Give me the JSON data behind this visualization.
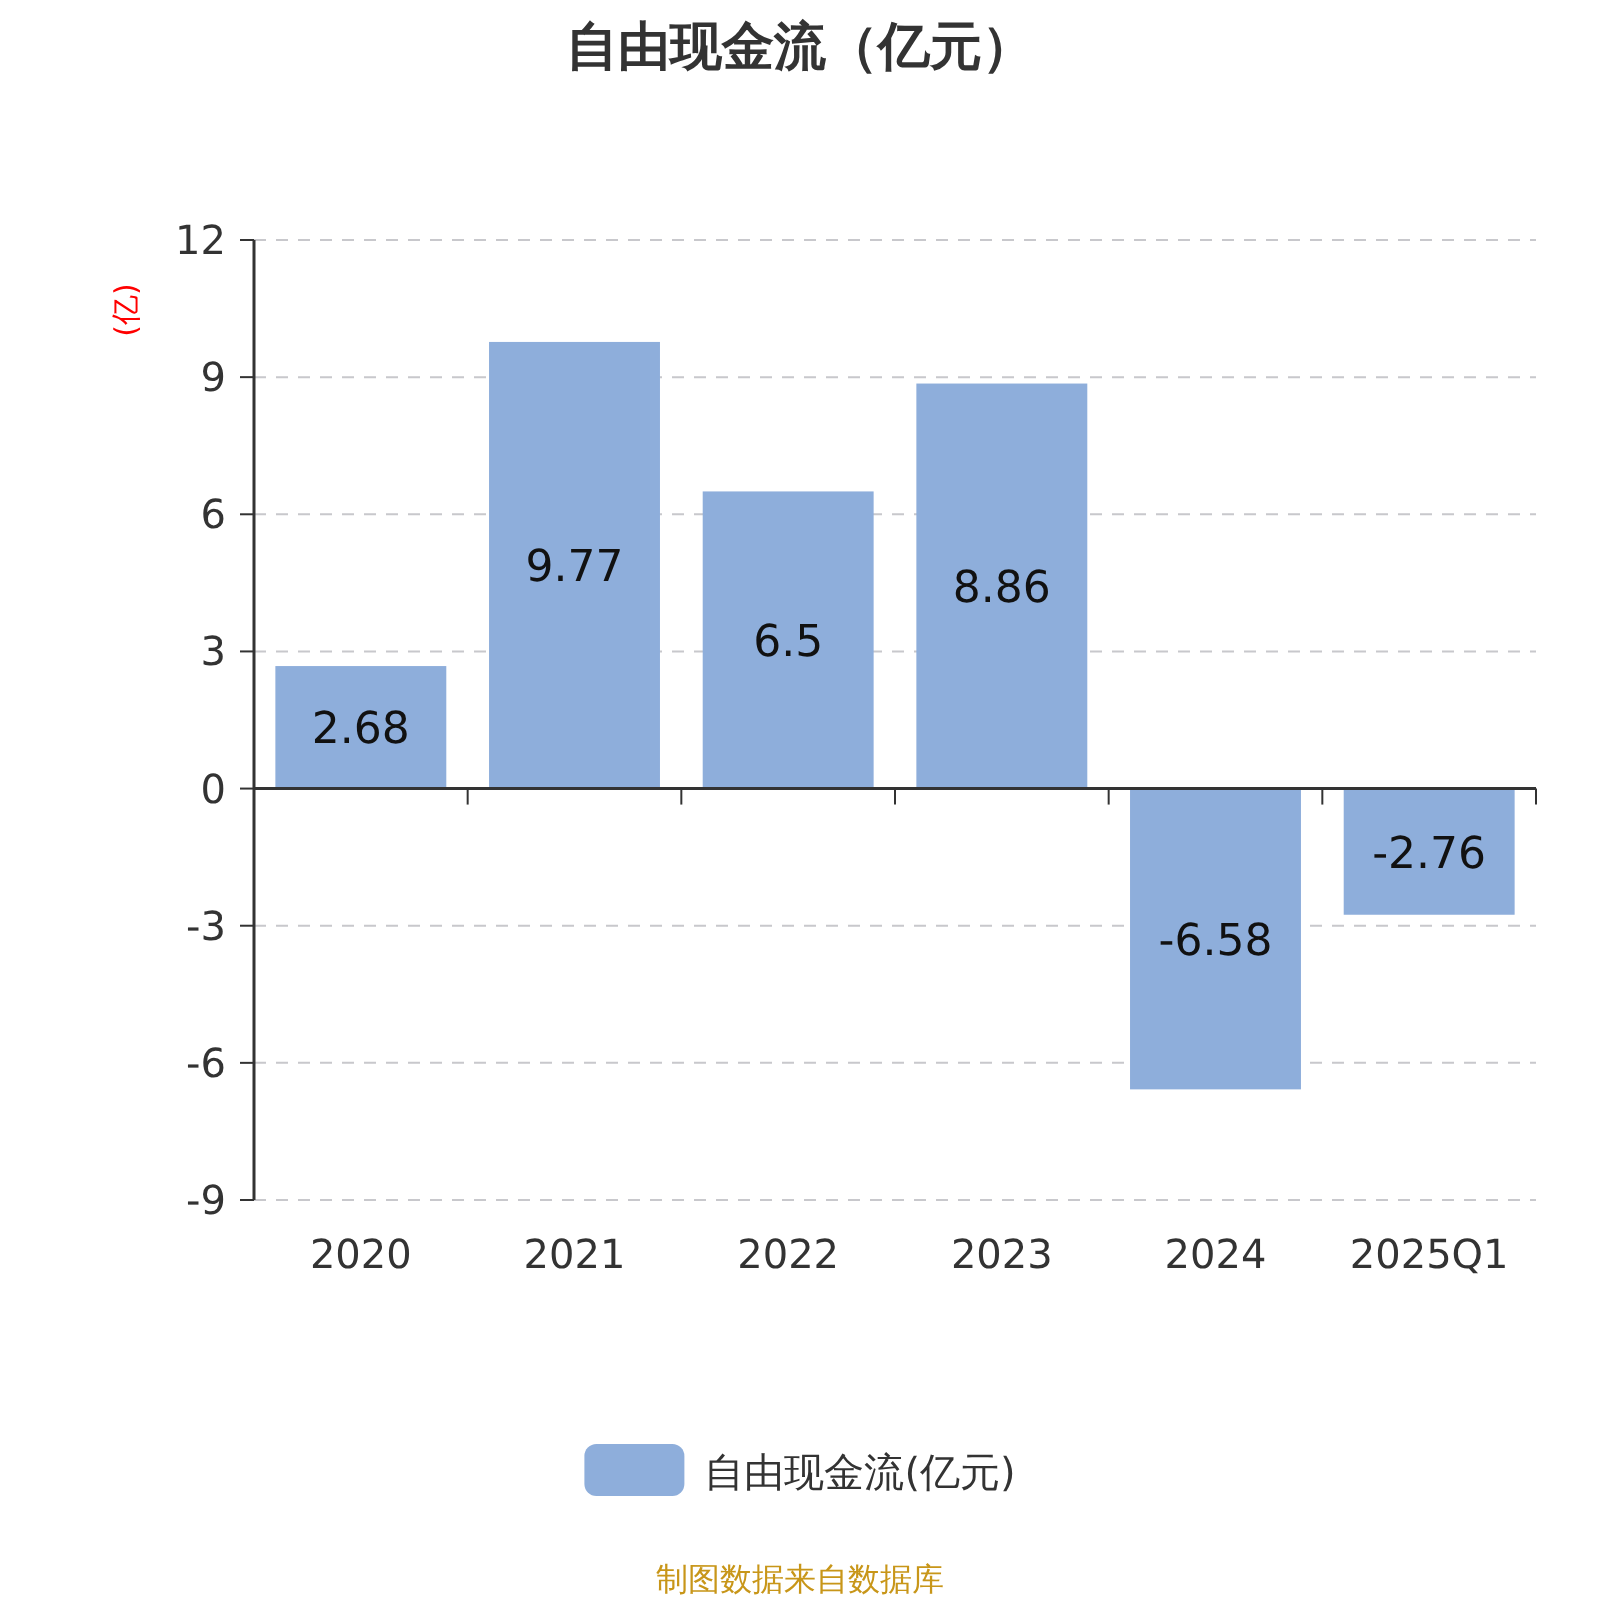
{
  "chart_data": {
    "type": "bar",
    "title": "自由现金流（亿元）",
    "ylabel": "(亿)",
    "categories": [
      "2020",
      "2021",
      "2022",
      "2023",
      "2024",
      "2025Q1"
    ],
    "series": [
      {
        "name": "自由现金流(亿元)",
        "color": "#8eaedb",
        "values": [
          2.68,
          9.77,
          6.5,
          8.86,
          -6.58,
          -2.76
        ]
      }
    ],
    "ylim": [
      -9,
      12
    ],
    "yticks": [
      -9,
      -6,
      -3,
      0,
      3,
      6,
      9,
      12
    ],
    "grid": "y",
    "legend": "bottom",
    "data_labels": true,
    "annotations": [
      "制图数据来自数据库"
    ]
  }
}
